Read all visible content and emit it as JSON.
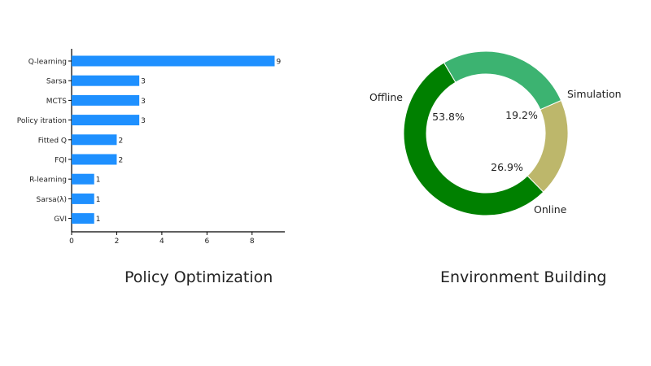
{
  "colors": {
    "bar": "#1e90ff",
    "axis": "#000000",
    "text": "#222222"
  },
  "captions": {
    "left": "Policy Optimization",
    "right": "Environment Building"
  },
  "chart_data": [
    {
      "type": "bar",
      "orientation": "horizontal",
      "categories": [
        "Q-learning",
        "Sarsa",
        "MCTS",
        "Policy itration",
        "Fitted Q",
        "FQI",
        "R-learning",
        "Sarsa(λ)",
        "GVI"
      ],
      "values": [
        9,
        3,
        3,
        3,
        2,
        2,
        1,
        1,
        1
      ],
      "data_labels": [
        "9",
        "3",
        "3",
        "3",
        "2",
        "2",
        "1",
        "1",
        "1"
      ],
      "xlim": [
        0,
        9.5
      ],
      "xticks": [
        0,
        2,
        4,
        6,
        8
      ],
      "grid": false,
      "color": "#1e90ff"
    },
    {
      "type": "pie",
      "donut": true,
      "labels": [
        "Offline",
        "Simulation",
        "Online"
      ],
      "values": [
        53.8,
        19.2,
        26.9
      ],
      "percent_labels": [
        "53.8%",
        "19.2%",
        "26.9%"
      ],
      "colors": [
        "#008000",
        "#bdb76b",
        "#3cb371"
      ]
    }
  ]
}
